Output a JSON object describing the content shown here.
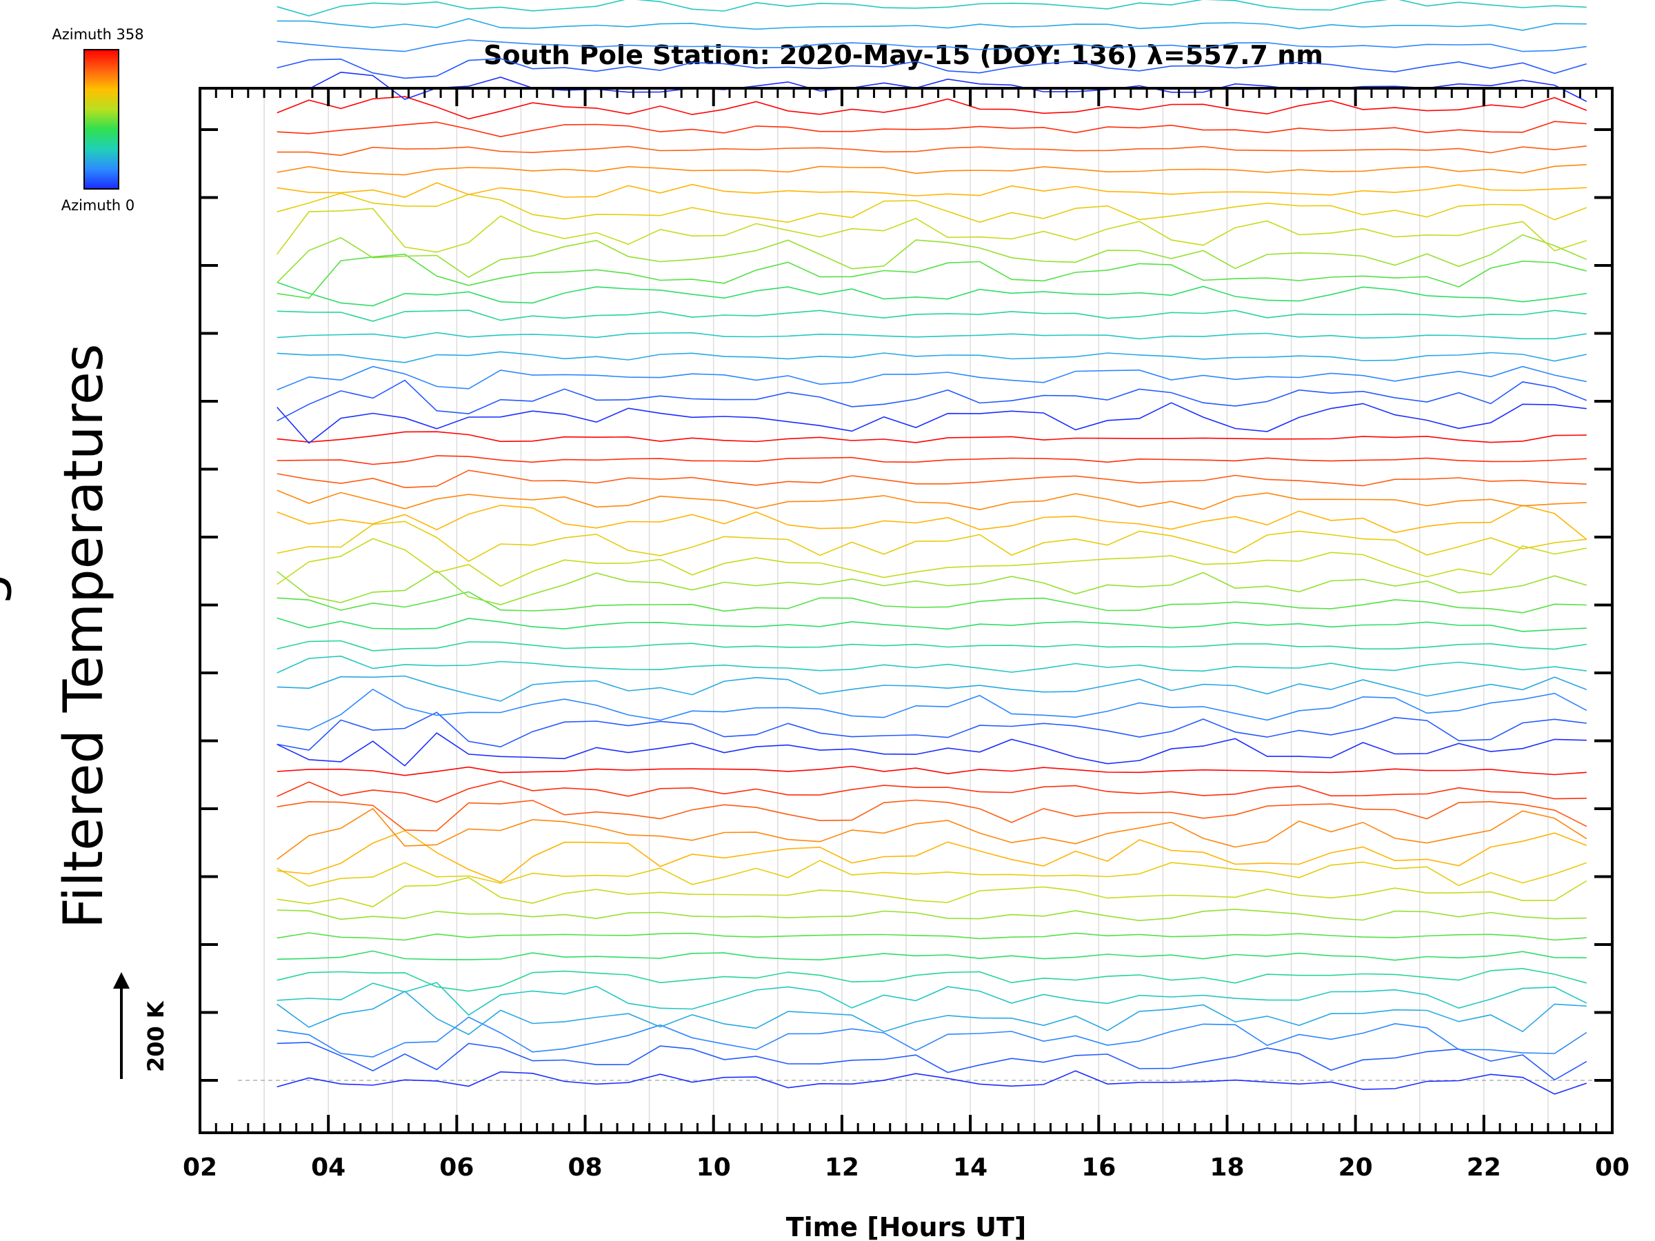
{
  "chart_data": {
    "type": "line",
    "title": "South Pole Station: 2020-May-15 (DOY: 136) λ=557.7 nm",
    "xlabel": "Time [Hours UT]",
    "ylabel": "Filtered Temperatures",
    "ylabel_cropped_prefix": "g",
    "xlim": [
      2,
      24
    ],
    "x_ticks": [
      "02",
      "04",
      "06",
      "08",
      "10",
      "12",
      "14",
      "16",
      "18",
      "20",
      "22",
      "00"
    ],
    "x_tick_values": [
      2,
      4,
      6,
      8,
      10,
      12,
      14,
      16,
      18,
      20,
      22,
      24
    ],
    "y_tick_labels_shown": false,
    "scale_bar": {
      "label": "200 K",
      "value_K": 200
    },
    "colorbar": {
      "top_label": "Azimuth 358",
      "bottom_label": "Azimuth 0",
      "colors": [
        "#1a2cff",
        "#2c8cff",
        "#20d0b8",
        "#30e050",
        "#b8e020",
        "#ffc000",
        "#ff6010",
        "#ff0000"
      ]
    },
    "series_layout": {
      "groups": 6,
      "traces_per_group": 16,
      "azimuth_range": [
        0,
        358
      ],
      "time_start_hours": 3.2,
      "time_end_hours": 23.6,
      "sample_count": 42,
      "trace_spacing_K": 30
    },
    "grid": true
  }
}
